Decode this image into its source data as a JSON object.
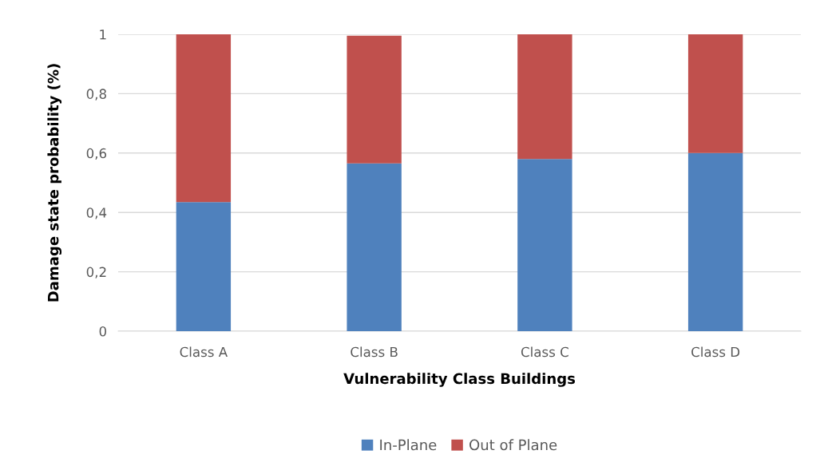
{
  "chart_data": {
    "type": "bar",
    "stacked": true,
    "xlabel": "Vulnerability Class Buildings",
    "ylabel": "Damage state probability (%)",
    "categories": [
      "Class A",
      "Class B",
      "Class C",
      "Class D"
    ],
    "series": [
      {
        "name": "In-Plane",
        "color": "#4f81bd",
        "values": [
          0.435,
          0.565,
          0.58,
          0.6
        ]
      },
      {
        "name": "Out of Plane",
        "color": "#c0504d",
        "values": [
          0.565,
          0.43,
          0.42,
          0.4
        ]
      }
    ],
    "ylim": [
      0,
      1
    ],
    "yticks": [
      0,
      {
        "value": 0.2,
        "label": "0,2"
      },
      {
        "value": 0.4,
        "label": "0,4"
      },
      {
        "value": 0.6,
        "label": "0,6"
      },
      {
        "value": 0.8,
        "label": "0,8"
      },
      1
    ],
    "grid": "y",
    "legend": "bottom"
  }
}
